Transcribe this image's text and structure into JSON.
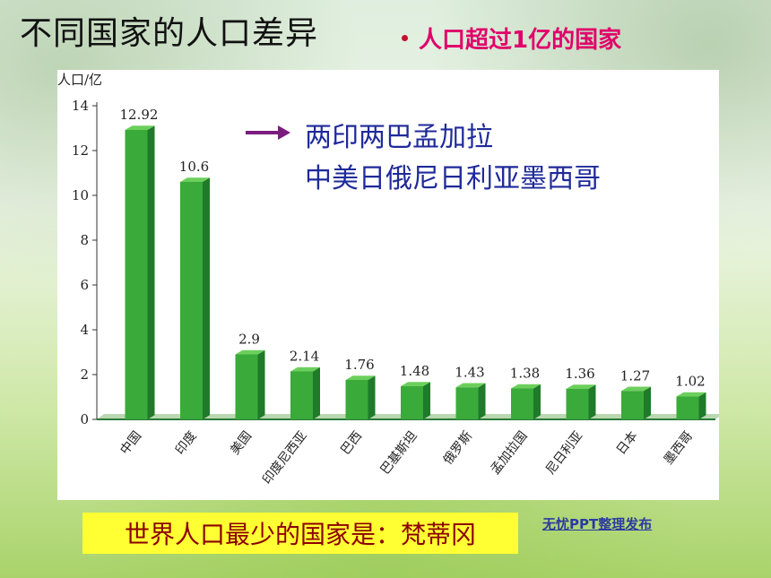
{
  "title": "不同国家的人口差异",
  "subtitle": "人口超过1亿的国家",
  "annotation": {
    "line1": "两印两巴孟加拉",
    "line2": "中美日俄尼日利亚墨西哥"
  },
  "fact": "世界人口最少的国家是：梵蒂冈",
  "credit": "无忧PPT整理发布",
  "colors": {
    "bar": "#3aaa3a",
    "bar_dark": "#1f7a2a",
    "title_accent": "#e0006a",
    "annotation": "#1f2a9a"
  },
  "chart_data": {
    "type": "bar",
    "ylabel": "人口/亿",
    "ylim": [
      0,
      14
    ],
    "yticks": [
      "0",
      "2",
      "4",
      "6",
      "8",
      "10",
      "12",
      "14"
    ],
    "categories": [
      "中国",
      "印度",
      "美国",
      "印度尼西亚",
      "巴西",
      "巴基斯坦",
      "俄罗斯",
      "孟加拉国",
      "尼日利亚",
      "日本",
      "墨西哥"
    ],
    "values": [
      12.92,
      10.6,
      2.9,
      2.14,
      1.76,
      1.48,
      1.43,
      1.38,
      1.36,
      1.27,
      1.02
    ],
    "value_labels": [
      "12.92",
      "10.6",
      "2.9",
      "2.14",
      "1.76",
      "1.48",
      "1.43",
      "1.38",
      "1.36",
      "1.27",
      "1.02"
    ]
  }
}
